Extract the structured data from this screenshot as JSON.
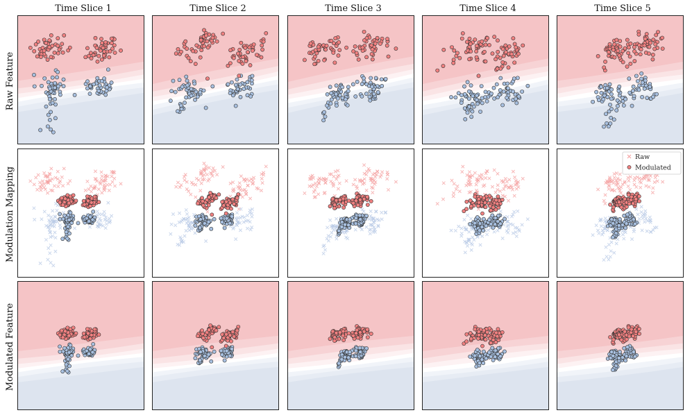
{
  "chart_data": {
    "type": "scatter",
    "column_titles": [
      "Time Slice 1",
      "Time Slice 2",
      "Time Slice 3",
      "Time Slice 4",
      "Time Slice 5"
    ],
    "row_labels": [
      "Raw Feature",
      "Modulation Mapping",
      "Modulated Feature"
    ],
    "legend": {
      "raw": "Raw",
      "modulated": "Modulated",
      "placement": "top-right of Modulation Mapping / Time Slice 5"
    },
    "colors": {
      "red_point": "#f08080",
      "blue_point": "#a8c0e0",
      "point_edge": "#333333",
      "red_region": "#f5c4c6",
      "blue_region": "#dde4ef",
      "raw_red_cross": "#f4a0a0",
      "raw_blue_cross": "#b8cae6"
    },
    "axes": {
      "xlim": [
        -3,
        3
      ],
      "ylim": [
        -3,
        3
      ],
      "ticks": "none",
      "grid": false
    },
    "points_per_class_per_slice": 90,
    "modulation_shrink_factor": 0.45,
    "slices": [
      {
        "red": {
          "centers": [
            [
              -1.5,
              1.5
            ],
            [
              1.0,
              1.4
            ]
          ],
          "spread": 0.38,
          "tilt": 0.15
        },
        "blue": {
          "centers": [
            [
              -1.4,
              -0.4
            ],
            [
              0.9,
              -0.3
            ]
          ],
          "spread": 0.35,
          "tail": [
            -1.6,
            -2.4
          ]
        },
        "boundary": {
          "y0": 0.4,
          "slope": 0.15
        }
      },
      {
        "red": {
          "centers": [
            [
              -0.8,
              1.6
            ],
            [
              1.3,
              1.2
            ]
          ],
          "spread": 0.45,
          "tilt": 0.35
        },
        "blue": {
          "centers": [
            [
              -1.2,
              -0.5
            ],
            [
              1.2,
              -0.3
            ]
          ],
          "spread": 0.38,
          "tail": [
            -1.7,
            -1.5
          ]
        },
        "boundary": {
          "y0": 0.4,
          "slope": 0.2
        }
      },
      {
        "red": {
          "centers": [
            [
              -1.2,
              1.4
            ],
            [
              0.9,
              1.5
            ]
          ],
          "spread": 0.4,
          "tilt": 0.25
        },
        "blue": {
          "centers": [
            [
              -0.6,
              -0.6
            ],
            [
              1.0,
              -0.4
            ]
          ],
          "spread": 0.35,
          "tail": [
            -1.3,
            -1.8
          ]
        },
        "boundary": {
          "y0": 0.5,
          "slope": 0.2
        }
      },
      {
        "red": {
          "centers": [
            [
              -0.6,
              1.5
            ],
            [
              0.9,
              1.1
            ]
          ],
          "spread": 0.45,
          "tilt": 0.4
        },
        "blue": {
          "centers": [
            [
              -0.6,
              -0.8
            ],
            [
              1.0,
              -0.5
            ]
          ],
          "spread": 0.38,
          "tail": [
            -1.0,
            -1.8
          ]
        },
        "boundary": {
          "y0": 0.4,
          "slope": 0.2
        }
      },
      {
        "red": {
          "centers": [
            [
              -0.2,
              1.3
            ],
            [
              1.2,
              1.6
            ]
          ],
          "spread": 0.42,
          "tilt": 0.3
        },
        "blue": {
          "centers": [
            [
              -0.5,
              -0.6
            ],
            [
              1.1,
              -0.4
            ]
          ],
          "spread": 0.36,
          "tail": [
            -0.6,
            -2.2
          ]
        },
        "boundary": {
          "y0": 0.4,
          "slope": 0.15
        }
      }
    ]
  }
}
